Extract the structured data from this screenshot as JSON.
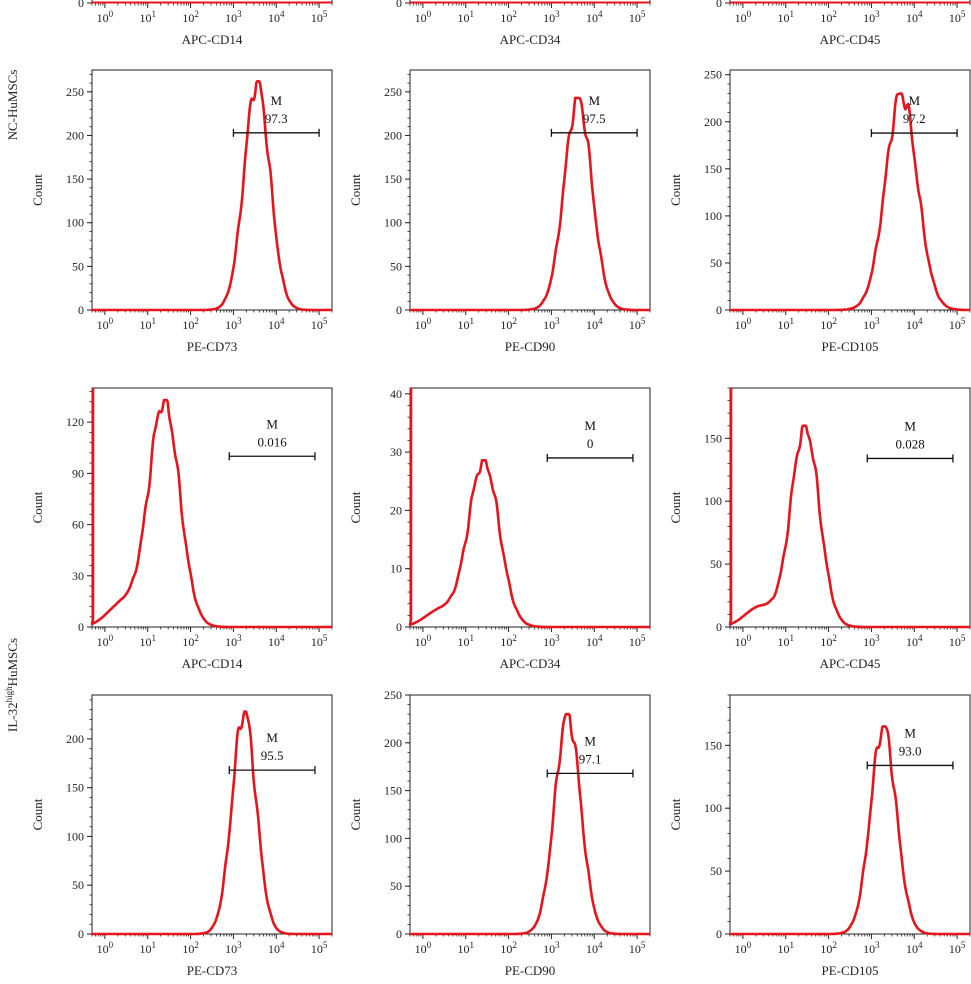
{
  "group_labels": {
    "top": "NC-HuMSCs",
    "bottom_prefix": "IL-32",
    "bottom_superscript": "high",
    "bottom_suffix": "HuMSCs"
  },
  "colors": {
    "histogram": "#e8141c",
    "axis": "#222222"
  },
  "chart_data": [
    {
      "type": "histogram",
      "group": "NC-HuMSCs",
      "xlabel": "APC-CD14",
      "ylabel": "",
      "x_scale": "log",
      "xlim": [
        0.5,
        200000
      ],
      "yticks": [
        0
      ],
      "gate": null,
      "partial": true,
      "peak": null
    },
    {
      "type": "histogram",
      "group": "NC-HuMSCs",
      "xlabel": "APC-CD34",
      "ylabel": "",
      "x_scale": "log",
      "xlim": [
        0.5,
        200000
      ],
      "yticks": [
        0
      ],
      "gate": null,
      "partial": true,
      "peak": null
    },
    {
      "type": "histogram",
      "group": "NC-HuMSCs",
      "xlabel": "APC-CD45",
      "ylabel": "",
      "x_scale": "log",
      "xlim": [
        0.5,
        200000
      ],
      "yticks": [
        0
      ],
      "gate": null,
      "partial": true,
      "peak": null
    },
    {
      "type": "histogram",
      "group": "NC-HuMSCs",
      "xlabel": "PE-CD73",
      "ylabel": "Count",
      "x_scale": "log",
      "xlim": [
        0.5,
        200000
      ],
      "ylim": [
        0,
        275
      ],
      "yticks": [
        0,
        50,
        100,
        150,
        200,
        250
      ],
      "gate": {
        "name": "M",
        "value": "97.3",
        "x_range": [
          1000,
          100000
        ],
        "y": 203
      },
      "peak": {
        "center_log": 3.55,
        "width_log": 0.3,
        "max": 262
      }
    },
    {
      "type": "histogram",
      "group": "NC-HuMSCs",
      "xlabel": "PE-CD90",
      "ylabel": "Count",
      "x_scale": "log",
      "xlim": [
        0.5,
        200000
      ],
      "ylim": [
        0,
        275
      ],
      "yticks": [
        0,
        50,
        100,
        150,
        200,
        250
      ],
      "gate": {
        "name": "M",
        "value": "97.5",
        "x_range": [
          1000,
          100000
        ],
        "y": 203
      },
      "peak": {
        "center_log": 3.62,
        "width_log": 0.32,
        "max": 243
      }
    },
    {
      "type": "histogram",
      "group": "NC-HuMSCs",
      "xlabel": "PE-CD105",
      "ylabel": "Count",
      "x_scale": "log",
      "xlim": [
        0.5,
        200000
      ],
      "ylim": [
        0,
        255
      ],
      "yticks": [
        0,
        50,
        100,
        150,
        200,
        250
      ],
      "gate": {
        "name": "M",
        "value": "97.2",
        "x_range": [
          1000,
          100000
        ],
        "y": 188
      },
      "peak": {
        "center_log": 3.7,
        "width_log": 0.37,
        "max": 230
      }
    },
    {
      "type": "histogram",
      "group": "IL-32high HuMSCs",
      "xlabel": "APC-CD14",
      "ylabel": "Count",
      "x_scale": "log",
      "xlim": [
        0.5,
        200000
      ],
      "ylim": [
        0,
        140
      ],
      "yticks": [
        0,
        30,
        60,
        90,
        120
      ],
      "gate": {
        "name": "M",
        "value": "0.016",
        "x_range": [
          800,
          80000
        ],
        "y": 100
      },
      "peak": {
        "center_log": 1.38,
        "width_log": 0.36,
        "max": 133
      }
    },
    {
      "type": "histogram",
      "group": "IL-32high HuMSCs",
      "xlabel": "APC-CD34",
      "ylabel": "Count",
      "x_scale": "log",
      "xlim": [
        0.5,
        200000
      ],
      "ylim": [
        0,
        41
      ],
      "yticks": [
        0,
        10,
        20,
        30,
        40
      ],
      "gate": {
        "name": "M",
        "value": "0",
        "x_range": [
          800,
          80000
        ],
        "y": 29
      },
      "peak": {
        "center_log": 1.42,
        "width_log": 0.36,
        "max": 28.6
      }
    },
    {
      "type": "histogram",
      "group": "IL-32high HuMSCs",
      "xlabel": "APC-CD45",
      "ylabel": "Count",
      "x_scale": "log",
      "xlim": [
        0.5,
        200000
      ],
      "ylim": [
        0,
        190
      ],
      "yticks": [
        0,
        50,
        100,
        150
      ],
      "gate": {
        "name": "M",
        "value": "0.028",
        "x_range": [
          800,
          80000
        ],
        "y": 134
      },
      "peak": {
        "center_log": 1.45,
        "width_log": 0.33,
        "max": 160
      }
    },
    {
      "type": "histogram",
      "group": "IL-32high HuMSCs",
      "xlabel": "PE-CD73",
      "ylabel": "Count",
      "x_scale": "log",
      "xlim": [
        0.5,
        200000
      ],
      "ylim": [
        0,
        245
      ],
      "yticks": [
        0,
        50,
        100,
        150,
        200
      ],
      "gate": {
        "name": "M",
        "value": "95.5",
        "x_range": [
          800,
          80000
        ],
        "y": 168
      },
      "peak": {
        "center_log": 3.25,
        "width_log": 0.28,
        "max": 228
      }
    },
    {
      "type": "histogram",
      "group": "IL-32high HuMSCs",
      "xlabel": "PE-CD90",
      "ylabel": "Count",
      "x_scale": "log",
      "xlim": [
        0.5,
        200000
      ],
      "ylim": [
        0,
        250
      ],
      "yticks": [
        0,
        50,
        100,
        150,
        200,
        250
      ],
      "gate": {
        "name": "M",
        "value": "97.1",
        "x_range": [
          800,
          80000
        ],
        "y": 168
      },
      "peak": {
        "center_log": 3.38,
        "width_log": 0.3,
        "max": 230
      }
    },
    {
      "type": "histogram",
      "group": "IL-32high HuMSCs",
      "xlabel": "PE-CD105",
      "ylabel": "Count",
      "x_scale": "log",
      "xlim": [
        0.5,
        200000
      ],
      "ylim": [
        0,
        190
      ],
      "yticks": [
        0,
        50,
        100,
        150
      ],
      "gate": {
        "name": "M",
        "value": "93.0",
        "x_range": [
          800,
          80000
        ],
        "y": 134
      },
      "peak": {
        "center_log": 3.28,
        "width_log": 0.3,
        "max": 165
      }
    }
  ]
}
